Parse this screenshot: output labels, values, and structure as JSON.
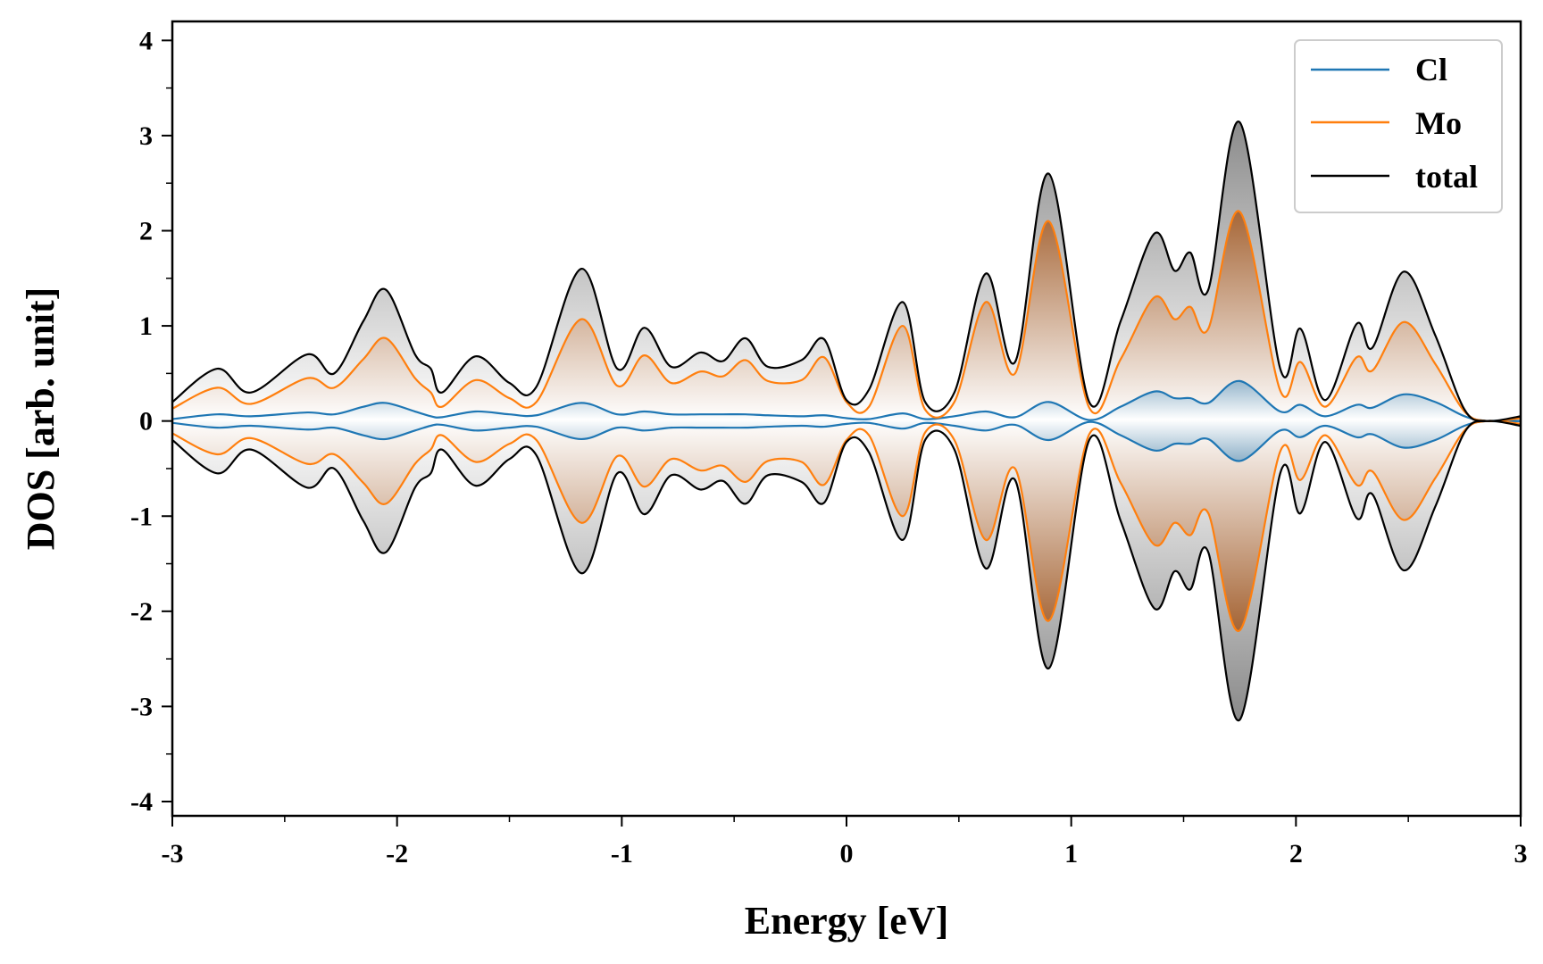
{
  "chart_data": {
    "type": "line",
    "title": "",
    "xlabel": "Energy [eV]",
    "ylabel": "DOS [arb. unit]",
    "xlim": [
      -3,
      3
    ],
    "ylim": [
      -4.15,
      4.2
    ],
    "xticks": [
      -3,
      -2,
      -1,
      0,
      1,
      2,
      3
    ],
    "yticks": [
      -4,
      -3,
      -2,
      -1,
      0,
      1,
      2,
      3,
      4
    ],
    "xtick_labels": [
      "-3",
      "-2",
      "-1",
      "0",
      "1",
      "2",
      "3"
    ],
    "ytick_labels": [
      "-4",
      "-3",
      "-2",
      "-1",
      "0",
      "1",
      "2",
      "3",
      "4"
    ],
    "mirrored_about_zero": true,
    "grid": false,
    "legend_position": "top-right",
    "colors": {
      "Cl": "#1f77b4",
      "Mo": "#ff7f0e",
      "total": "#000000"
    },
    "x": [
      -3.0,
      -2.8,
      -2.65,
      -2.4,
      -2.28,
      -2.15,
      -2.05,
      -1.92,
      -1.85,
      -1.8,
      -1.65,
      -1.5,
      -1.38,
      -1.18,
      -1.02,
      -0.9,
      -0.78,
      -0.65,
      -0.55,
      -0.45,
      -0.35,
      -0.2,
      -0.1,
      0.0,
      0.1,
      0.25,
      0.35,
      0.48,
      0.62,
      0.75,
      0.9,
      1.08,
      1.22,
      1.37,
      1.46,
      1.53,
      1.61,
      1.75,
      1.93,
      2.02,
      2.13,
      2.27,
      2.34,
      2.48,
      2.62,
      2.75,
      2.85,
      3.0
    ],
    "series": [
      {
        "name": "Cl",
        "values": [
          0.02,
          0.07,
          0.05,
          0.09,
          0.07,
          0.15,
          0.19,
          0.1,
          0.05,
          0.04,
          0.1,
          0.07,
          0.06,
          0.19,
          0.07,
          0.1,
          0.07,
          0.07,
          0.07,
          0.07,
          0.06,
          0.05,
          0.06,
          0.03,
          0.02,
          0.08,
          0.02,
          0.05,
          0.1,
          0.04,
          0.2,
          0.01,
          0.15,
          0.31,
          0.24,
          0.24,
          0.19,
          0.42,
          0.1,
          0.17,
          0.05,
          0.17,
          0.14,
          0.28,
          0.2,
          0.05,
          0.0,
          0.0
        ]
      },
      {
        "name": "Mo",
        "values": [
          0.13,
          0.35,
          0.18,
          0.45,
          0.35,
          0.65,
          0.87,
          0.45,
          0.3,
          0.15,
          0.43,
          0.24,
          0.2,
          1.07,
          0.37,
          0.69,
          0.4,
          0.52,
          0.47,
          0.64,
          0.42,
          0.43,
          0.67,
          0.2,
          0.15,
          1.0,
          0.12,
          0.2,
          1.25,
          0.5,
          2.1,
          0.14,
          0.65,
          1.3,
          1.07,
          1.2,
          0.97,
          2.2,
          0.32,
          0.62,
          0.15,
          0.67,
          0.53,
          1.04,
          0.6,
          0.1,
          0.0,
          0.03
        ]
      },
      {
        "name": "total",
        "values": [
          0.2,
          0.55,
          0.3,
          0.7,
          0.5,
          1.05,
          1.38,
          0.7,
          0.55,
          0.3,
          0.68,
          0.4,
          0.36,
          1.6,
          0.55,
          0.98,
          0.57,
          0.72,
          0.63,
          0.87,
          0.57,
          0.64,
          0.86,
          0.22,
          0.33,
          1.25,
          0.2,
          0.3,
          1.55,
          0.62,
          2.6,
          0.2,
          1.05,
          1.97,
          1.58,
          1.77,
          1.38,
          3.14,
          0.55,
          0.97,
          0.22,
          1.02,
          0.77,
          1.57,
          0.9,
          0.12,
          0.0,
          0.05
        ]
      }
    ]
  }
}
